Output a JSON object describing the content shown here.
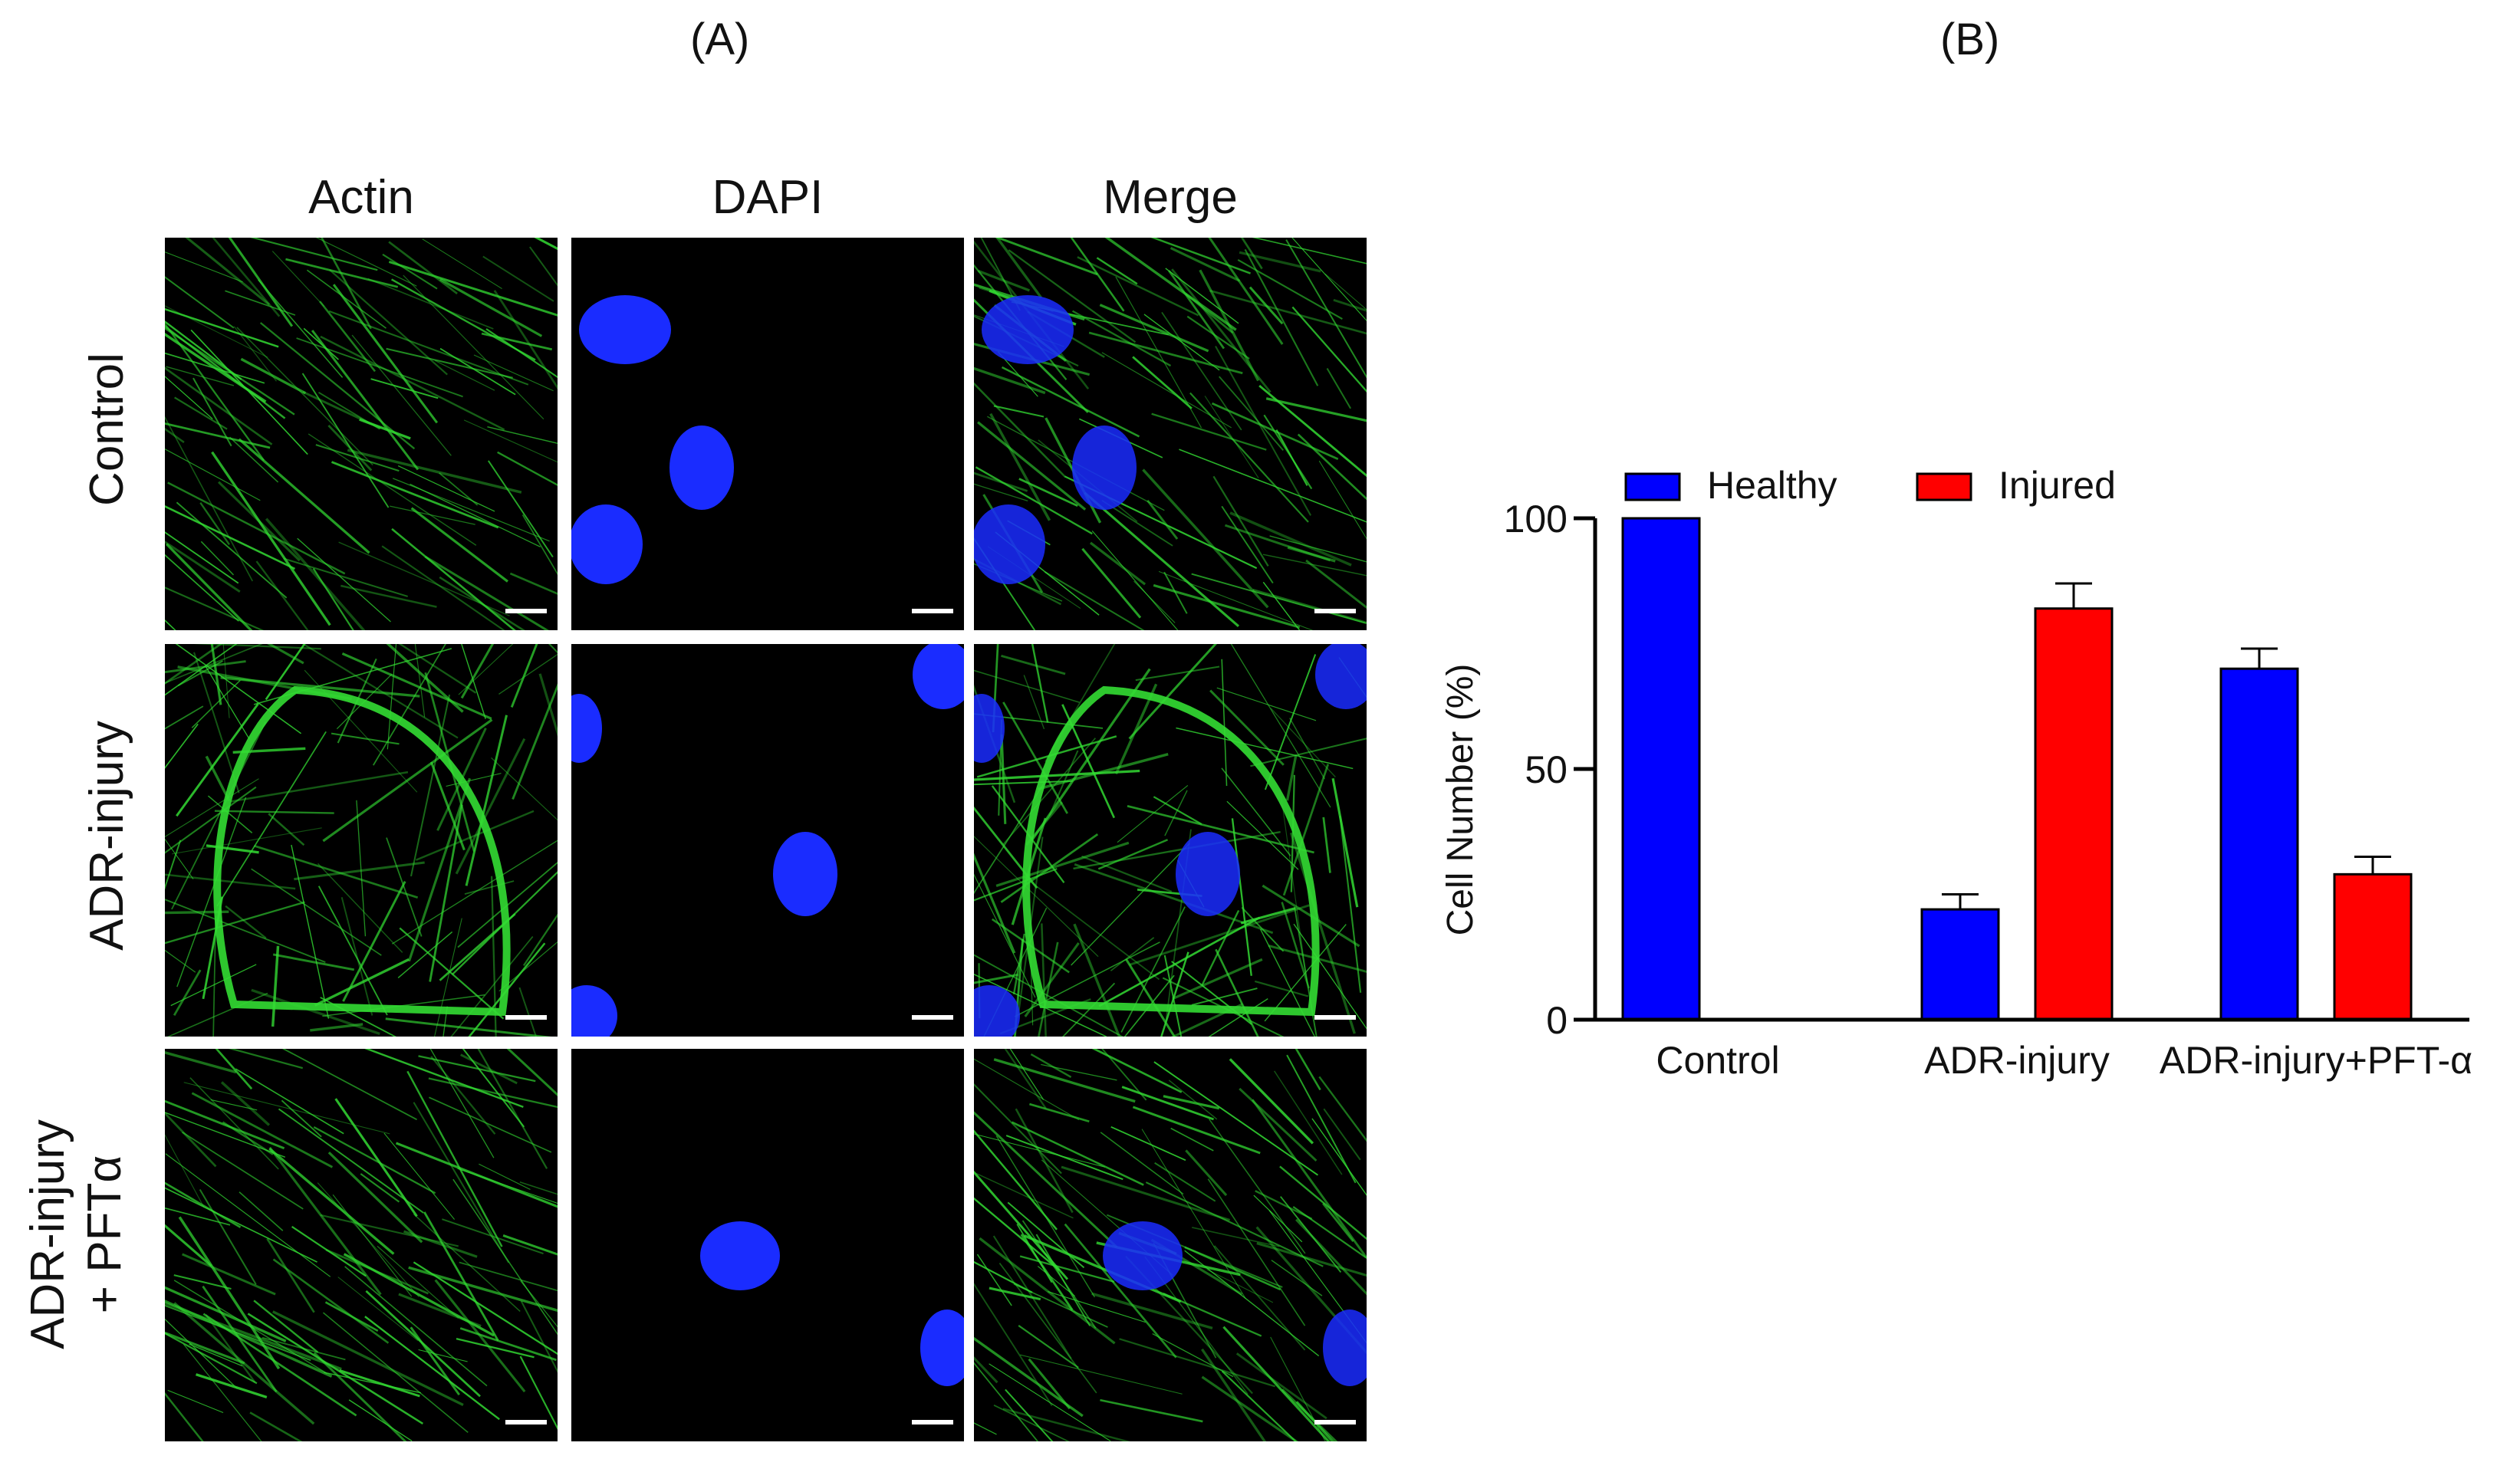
{
  "panel_a": {
    "letter": "(A)",
    "columns": [
      "Actin",
      "DAPI",
      "Merge"
    ],
    "rows": [
      {
        "label": "Control"
      },
      {
        "label": "ADR-injury"
      },
      {
        "label_lines": [
          "ADR-injury",
          "+ PFTα"
        ]
      }
    ],
    "colors": {
      "actin": "#33dd33",
      "dapi": "#1a2cff",
      "background": "#000000",
      "scalebar": "#ffffff"
    }
  },
  "panel_b": {
    "letter": "(B)"
  },
  "chart_data": {
    "type": "bar",
    "categories": [
      "Control",
      "ADR-injury",
      "ADR-injury+PFT-α"
    ],
    "series": [
      {
        "name": "Healthy",
        "color": "#0000ff",
        "values": [
          100,
          22,
          70
        ],
        "errors": [
          0,
          3,
          4
        ]
      },
      {
        "name": "Injured",
        "color": "#ff0000",
        "values": [
          0,
          82,
          29
        ],
        "errors": [
          0,
          5,
          3.5
        ]
      }
    ],
    "ylabel": "Cell Number (%)",
    "xlabel": "",
    "ylim": [
      0,
      100
    ],
    "yticks": [
      0,
      50,
      100
    ],
    "legend_position": "top",
    "grid": false
  }
}
